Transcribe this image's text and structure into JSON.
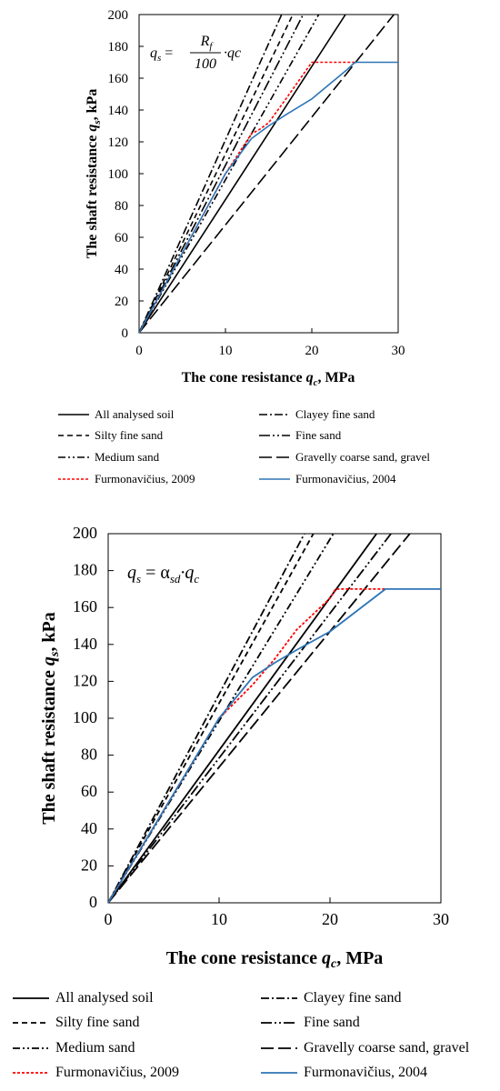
{
  "chart_data": [
    {
      "type": "line",
      "title": "",
      "xlabel": "The cone resistance q_c, MPa",
      "ylabel": "The shaft resistance q_s, kPa",
      "xlabel_parts": [
        "The cone resistance ",
        "q",
        "c",
        ", MPa"
      ],
      "ylabel_parts": [
        "The shaft resistance ",
        "q",
        "s",
        ", kPa"
      ],
      "formula": {
        "lhs": "q",
        "lhs_sub": "s",
        "eq": " = ",
        "num": "R",
        "num_sub": "f",
        "den": "100",
        "rhs": "·qc"
      },
      "xlim": [
        0,
        30
      ],
      "ylim": [
        0,
        200
      ],
      "x_ticks": [
        "0",
        "10",
        "20",
        "30"
      ],
      "y_ticks": [
        "0",
        "20",
        "40",
        "60",
        "80",
        "100",
        "120",
        "140",
        "160",
        "180",
        "200"
      ],
      "grid": false,
      "legend_position": "bottom",
      "series": [
        {
          "name": "All analysed soil",
          "color": "#000000",
          "dash": "solid",
          "x": [
            0,
            23.9
          ],
          "y": [
            0,
            200
          ]
        },
        {
          "name": "Clayey fine sand",
          "color": "#000000",
          "dash": "dash-dot",
          "x": [
            0,
            16.5
          ],
          "y": [
            0,
            200
          ]
        },
        {
          "name": "Silty fine sand",
          "color": "#000000",
          "dash": "dash",
          "x": [
            0,
            17.8
          ],
          "y": [
            0,
            200
          ]
        },
        {
          "name": "Fine sand",
          "color": "#000000",
          "dash": "long-dash-dot-dot",
          "x": [
            0,
            19.0
          ],
          "y": [
            0,
            200
          ]
        },
        {
          "name": "Medium sand",
          "color": "#000000",
          "dash": "dash-dot-dot",
          "x": [
            0,
            20.8
          ],
          "y": [
            0,
            200
          ]
        },
        {
          "name": "Gravelly coarse sand, gravel",
          "color": "#000000",
          "dash": "long-dash",
          "x": [
            0,
            29.5
          ],
          "y": [
            0,
            200
          ]
        },
        {
          "name": "Furmonavičius, 2009",
          "color": "#ff0000",
          "dash": "dot",
          "x": [
            0,
            1,
            5,
            10,
            13,
            14,
            15,
            17,
            20,
            25
          ],
          "y": [
            0,
            10,
            50,
            100,
            125,
            128,
            132,
            147,
            170,
            170
          ]
        },
        {
          "name": "Furmonavičius, 2004",
          "color": "#2e75b6",
          "dash": "solid",
          "x": [
            0,
            1,
            5,
            10,
            13,
            15,
            17,
            20,
            24,
            25,
            30
          ],
          "y": [
            0,
            10,
            50,
            100,
            122,
            130,
            137,
            147,
            165,
            170,
            170
          ]
        }
      ]
    },
    {
      "type": "line",
      "title": "",
      "xlabel": "The cone resistance q_c, MPa",
      "ylabel": "The shaft resistance q_s, kPa",
      "xlabel_parts": [
        "The cone resistance ",
        "q",
        "c",
        ", MPa"
      ],
      "ylabel_parts": [
        "The shaft resistance ",
        "q",
        "s",
        ", kPa"
      ],
      "formula": {
        "lhs": "q",
        "lhs_sub": "s",
        "eq": " = α",
        "mid_sub": "sd",
        "rhs": "·q",
        "rhs_sub": "c"
      },
      "xlim": [
        0,
        30
      ],
      "ylim": [
        0,
        200
      ],
      "x_ticks": [
        "0",
        "10",
        "20",
        "30"
      ],
      "y_ticks": [
        "0",
        "20",
        "40",
        "60",
        "80",
        "100",
        "120",
        "140",
        "160",
        "180",
        "200"
      ],
      "grid": false,
      "legend_position": "bottom",
      "series": [
        {
          "name": "All analysed soil",
          "color": "#000000",
          "dash": "solid",
          "x": [
            0,
            24.2
          ],
          "y": [
            0,
            200
          ]
        },
        {
          "name": "Clayey fine sand",
          "color": "#000000",
          "dash": "dash-dot",
          "x": [
            0,
            17.7
          ],
          "y": [
            0,
            200
          ]
        },
        {
          "name": "Silty fine sand",
          "color": "#000000",
          "dash": "dash",
          "x": [
            0,
            18.5
          ],
          "y": [
            0,
            200
          ]
        },
        {
          "name": "Fine sand",
          "color": "#000000",
          "dash": "long-dash-dot-dot",
          "x": [
            0,
            25.5
          ],
          "y": [
            0,
            200
          ]
        },
        {
          "name": "Medium sand",
          "color": "#000000",
          "dash": "dash-dot-dot",
          "x": [
            0,
            20.3
          ],
          "y": [
            0,
            200
          ]
        },
        {
          "name": "Gravelly coarse sand, gravel",
          "color": "#000000",
          "dash": "long-dash",
          "x": [
            0,
            27.2
          ],
          "y": [
            0,
            200
          ]
        },
        {
          "name": "Furmonavičius, 2009",
          "color": "#ff0000",
          "dash": "dot",
          "x": [
            0,
            1,
            5,
            10,
            13,
            14,
            15,
            17,
            20,
            20.5,
            25
          ],
          "y": [
            0,
            10,
            50,
            100,
            118,
            125,
            132,
            148,
            165,
            170,
            170
          ]
        },
        {
          "name": "Furmonavičius, 2004",
          "color": "#2e75b6",
          "dash": "solid",
          "x": [
            0,
            1,
            5,
            10,
            13,
            15,
            17,
            20,
            25,
            30
          ],
          "y": [
            0,
            10,
            50,
            100,
            122,
            130,
            137,
            147,
            170,
            170
          ]
        }
      ]
    }
  ]
}
